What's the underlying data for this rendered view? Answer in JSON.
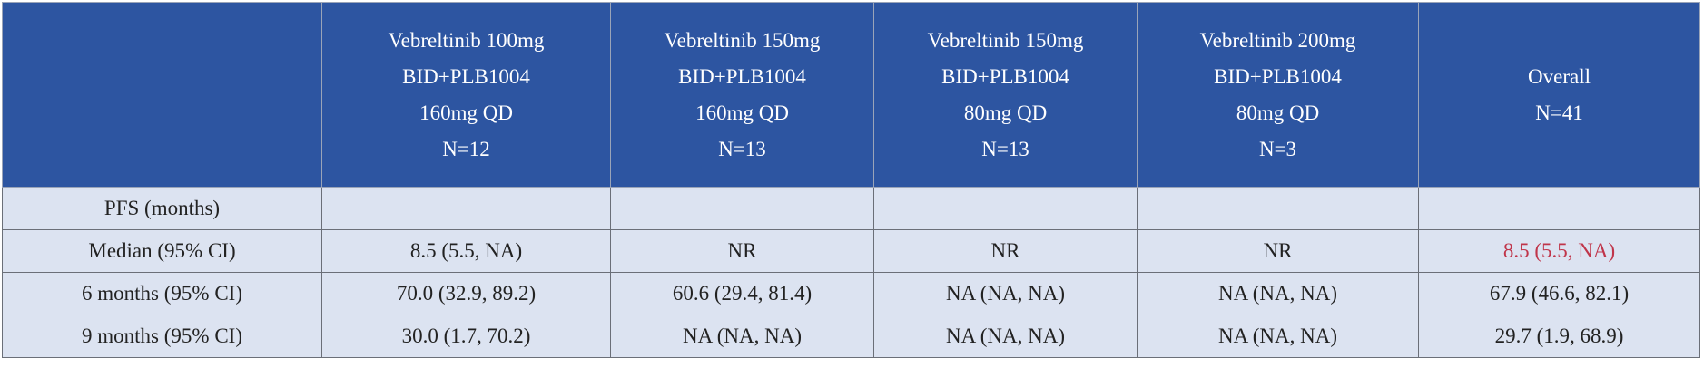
{
  "table": {
    "header": [
      [],
      [
        "Vebreltinib 100mg",
        "BID+PLB1004",
        "160mg QD",
        "N=12"
      ],
      [
        "Vebreltinib 150mg",
        "BID+PLB1004",
        "160mg QD",
        "N=13"
      ],
      [
        "Vebreltinib 150mg",
        "BID+PLB1004",
        "80mg QD",
        "N=13"
      ],
      [
        "Vebreltinib 200mg",
        "BID+PLB1004",
        "80mg QD",
        "N=3"
      ],
      [
        "Overall",
        "N=41"
      ]
    ],
    "rows": [
      [
        "PFS (months)",
        "",
        "",
        "",
        "",
        ""
      ],
      [
        "Median (95% CI)",
        "8.5 (5.5, NA)",
        "NR",
        "NR",
        "NR",
        "8.5 (5.5, NA)"
      ],
      [
        "6 months (95% CI)",
        "70.0 (32.9, 89.2)",
        "60.6 (29.4, 81.4)",
        "NA (NA, NA)",
        "NA (NA, NA)",
        "67.9 (46.6, 82.1)"
      ],
      [
        "9 months (95% CI)",
        "30.0 (1.7, 70.2)",
        "NA (NA, NA)",
        "NA (NA, NA)",
        "NA (NA, NA)",
        "29.7 (1.9, 68.9)"
      ]
    ]
  }
}
